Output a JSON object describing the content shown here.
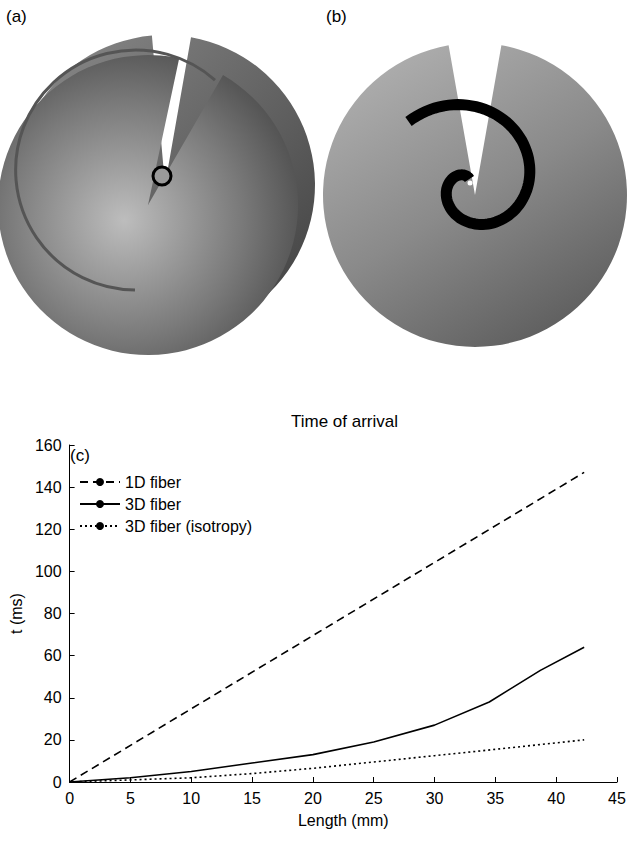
{
  "panel_labels": [
    "(a)",
    "(b)"
  ],
  "chart_data": {
    "type": "line",
    "panel_label": "(c)",
    "title": "Time of arrival",
    "x_label": "Length (mm)",
    "y_label": "t (ms)",
    "xlim": [
      0,
      45
    ],
    "xticks": [
      0,
      5,
      10,
      15,
      20,
      25,
      30,
      35,
      40,
      45
    ],
    "ylim": [
      0,
      160
    ],
    "yticks": [
      0,
      20,
      40,
      60,
      80,
      100,
      120,
      140,
      160
    ],
    "grid": false,
    "legend": "upper left",
    "series": [
      {
        "name": "1D fiber",
        "color": "#000000",
        "line_style": "dashed",
        "x": [
          0,
          42.3
        ],
        "values": [
          0,
          147
        ]
      },
      {
        "name": "3D fiber",
        "color": "#000000",
        "line_style": "solid",
        "x": [
          0,
          5,
          10,
          15,
          20,
          25,
          30,
          34.5,
          38.7,
          42.3
        ],
        "values": [
          0,
          2,
          5,
          9,
          13,
          19,
          27,
          38,
          53,
          64
        ]
      },
      {
        "name": "3D fiber (isotropy)",
        "color": "#000000",
        "line_style": "dotted",
        "x": [
          0,
          5,
          10,
          15,
          20,
          25,
          30,
          35,
          42.3
        ],
        "values": [
          0,
          1,
          2,
          4,
          6.5,
          9.5,
          12.5,
          15.5,
          20
        ]
      }
    ]
  }
}
